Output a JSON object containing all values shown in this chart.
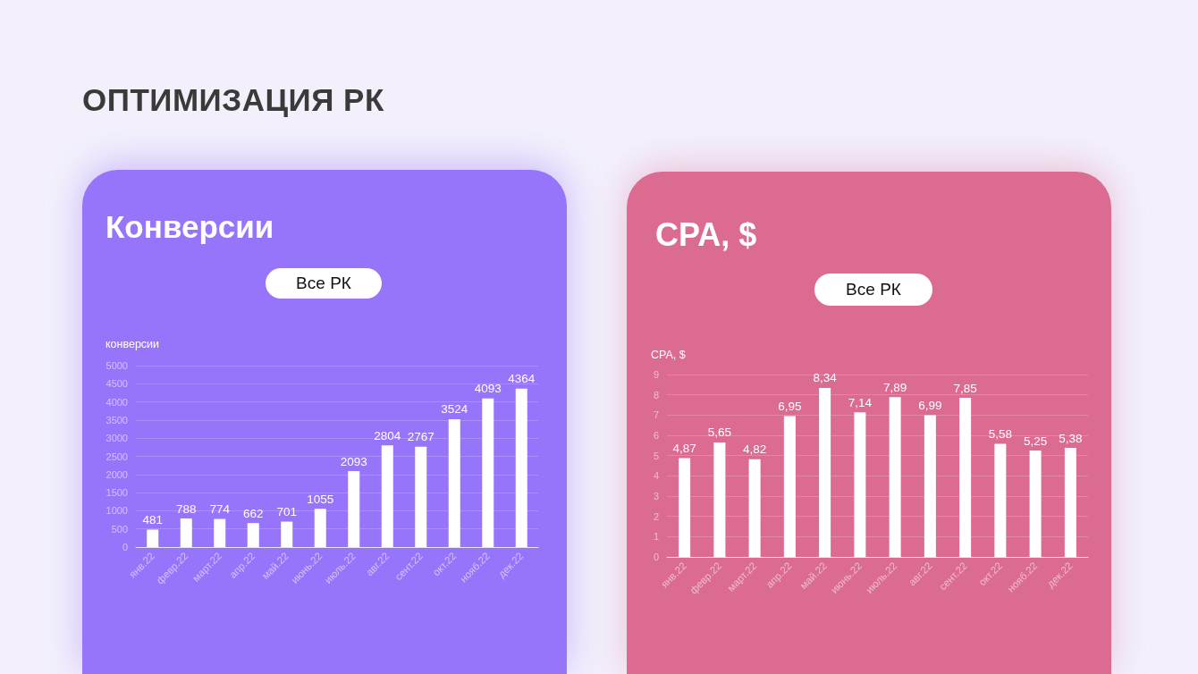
{
  "chart_data": [
    {
      "type": "other",
      "title": "ОПТИМИЗАЦИЯ РК"
    },
    {
      "type": "bar",
      "title": "Конверсии",
      "ylabel": "конверсии",
      "annotations": [
        "Все РК"
      ],
      "categories": [
        "янв.22",
        "февр.22",
        "март.22",
        "апр.22",
        "май.22",
        "июнь.22",
        "июль.22",
        "авг.22",
        "сент.22",
        "окт.22",
        "нояб.22",
        "дек.22"
      ],
      "values": [
        481,
        788,
        774,
        662,
        701,
        1055,
        2093,
        2804,
        2767,
        3524,
        4093,
        4364
      ],
      "color": "#ffffff",
      "ylim": [
        0,
        5000
      ],
      "yticks": [
        0,
        500,
        1000,
        1500,
        2000,
        2500,
        3000,
        3500,
        4000,
        4500,
        5000
      ],
      "grid": "y",
      "data_labels": true
    },
    {
      "type": "bar",
      "title": "CPA, $",
      "ylabel": "CPA, $",
      "annotations": [
        "Все РК"
      ],
      "categories": [
        "янв.22",
        "февр.22",
        "март.22",
        "апр.22",
        "май.22",
        "июнь.22",
        "июль.22",
        "авг.22",
        "сент.22",
        "окт.22",
        "нояб.22",
        "дек.22"
      ],
      "values": [
        4.87,
        5.65,
        4.82,
        6.95,
        8.34,
        7.14,
        7.89,
        6.99,
        7.85,
        5.58,
        5.25,
        5.38
      ],
      "color": "#ffffff",
      "value_labels": [
        "4,87",
        "5,65",
        "4,82",
        "6,95",
        "8,34",
        "7,14",
        "7,89",
        "6,99",
        "7,85",
        "5,58",
        "5,25",
        "5,38"
      ],
      "ylim": [
        0,
        9
      ],
      "yticks": [
        0,
        1,
        2,
        3,
        4,
        5,
        6,
        7,
        8,
        9
      ],
      "grid": "y"
    }
  ]
}
